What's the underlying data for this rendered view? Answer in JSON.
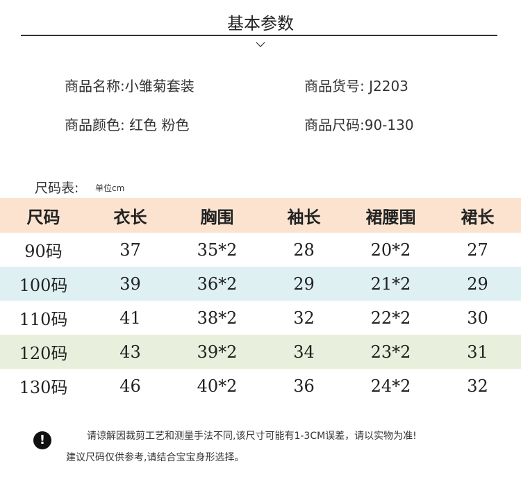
{
  "header": {
    "title": "基本参数"
  },
  "info": [
    "商品名称:小雏菊套装",
    "商品货号: J2203",
    "商品颜色: 红色 粉色",
    "商品尺码:90-130"
  ],
  "size_table": {
    "label": "尺码表:",
    "unit": "单位cm",
    "headers": [
      "尺码",
      "衣长",
      "胸围",
      "袖长",
      "裙腰围",
      "裙长"
    ],
    "rows": [
      [
        "90码",
        "37",
        "35*2",
        "28",
        "20*2",
        "27"
      ],
      [
        "100码",
        "39",
        "36*2",
        "29",
        "21*2",
        "29"
      ],
      [
        "110码",
        "41",
        "38*2",
        "32",
        "22*2",
        "30"
      ],
      [
        "120码",
        "43",
        "39*2",
        "34",
        "23*2",
        "31"
      ],
      [
        "130码",
        "46",
        "40*2",
        "36",
        "24*2",
        "32"
      ]
    ]
  },
  "notes": [
    "请谅解因裁剪工艺和测量手法不同,该尺寸可能有1-3CM误差，请以实物为准!",
    "建议尺码仅供参考,请结合宝宝身形选择。"
  ]
}
